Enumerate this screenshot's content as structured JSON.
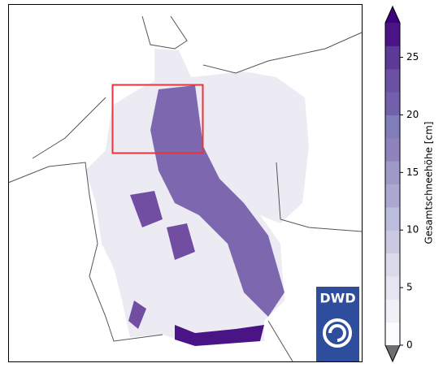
{
  "map": {
    "logo_text": "DWD"
  },
  "colorbar": {
    "label": "Gesamtschneehöhe [cm]",
    "lim": [
      0,
      28
    ],
    "ticks": [
      0,
      5,
      10,
      15,
      20,
      25
    ],
    "colors": [
      "#fcfbfd",
      "#f2f0f7",
      "#e6e5f1",
      "#dadaeb",
      "#cbc9e2",
      "#bcbddc",
      "#aba8d1",
      "#9e9ac8",
      "#8f83bd",
      "#807dba",
      "#7260ac",
      "#6a51a3",
      "#5b3a98",
      "#4a1486"
    ],
    "under_color": "#6b6e73",
    "over_color": "#3f007d"
  }
}
